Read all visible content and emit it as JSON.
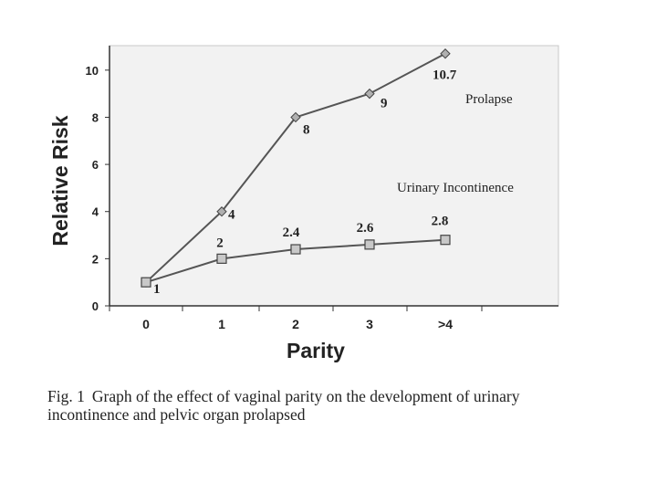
{
  "chart_data": {
    "type": "line",
    "xlabel": "Parity",
    "ylabel": "Relative Risk",
    "categories": [
      "0",
      "1",
      "2",
      "3",
      ">4"
    ],
    "ylim": [
      0,
      11
    ],
    "yticks": [
      0,
      2,
      4,
      6,
      8,
      10
    ],
    "grid": false,
    "series": [
      {
        "name": "Prolapse",
        "values": [
          1,
          4,
          8,
          9,
          10.7
        ],
        "data_labels": [
          "1",
          "4",
          "8",
          "9",
          "10.7"
        ],
        "marker": "diamond",
        "color": "#555555"
      },
      {
        "name": "Urinary Incontinence",
        "values": [
          1,
          2,
          2.4,
          2.6,
          2.8
        ],
        "data_labels": [
          "",
          "2",
          "2.4",
          "2.6",
          "2.8"
        ],
        "marker": "square",
        "color": "#555555"
      }
    ]
  },
  "caption": {
    "label": "Fig. 1",
    "text": "Graph of the effect of vaginal parity on the development of urinary incontinence and pelvic organ prolapsed"
  }
}
